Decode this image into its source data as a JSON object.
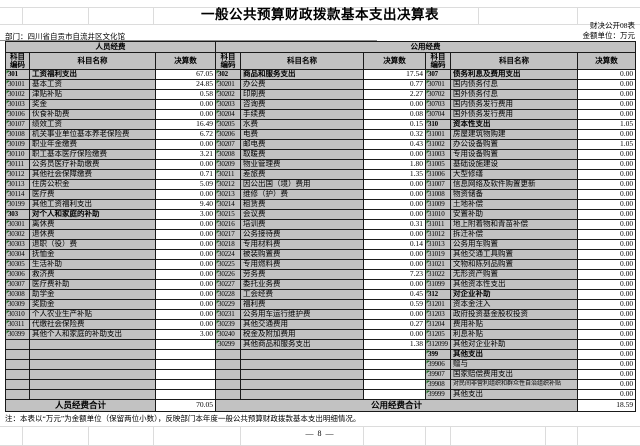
{
  "page": {
    "title": "一般公共预算财政拨款基本支出决算表",
    "table_code": "财决公开08表",
    "department_label": "部门：四川省自贡市自流井区文化馆",
    "unit_label": "金额单位：万元",
    "note": "注：本表以“万元”为金额单位（保留两位小数），反映部门本年度一般公共预算财政拨款基本支出明细情况。",
    "page_number": "— 8 —"
  },
  "table": {
    "group_headers": [
      "人员经费",
      "公用经费"
    ],
    "column_headers": [
      "科目编码",
      "科目名称",
      "决算数"
    ],
    "personnel": {
      "rows": [
        [
          "301",
          "工资福利支出",
          "67.05",
          1
        ],
        [
          "30101",
          "基本工资",
          "24.85"
        ],
        [
          "30102",
          "津贴补贴",
          "0.58"
        ],
        [
          "30103",
          "奖金",
          "0.00"
        ],
        [
          "30106",
          "伙食补助费",
          "0.00"
        ],
        [
          "30107",
          "绩效工资",
          "16.49"
        ],
        [
          "30108",
          "机关事业单位基本养老保险费",
          "6.72"
        ],
        [
          "30109",
          "职业年金缴费",
          "0.00"
        ],
        [
          "30110",
          "职工基本医疗保险缴费",
          "3.21"
        ],
        [
          "30111",
          "公务员医疗补助缴费",
          "0.00"
        ],
        [
          "30112",
          "其他社会保障缴费",
          "0.71"
        ],
        [
          "30113",
          "住房公积金",
          "5.09"
        ],
        [
          "30114",
          "医疗费",
          "0.00"
        ],
        [
          "30199",
          "其他工资福利支出",
          "9.40"
        ],
        [
          "303",
          "对个人和家庭的补助",
          "3.00",
          1
        ],
        [
          "30301",
          "离休费",
          "0.00"
        ],
        [
          "30302",
          "退休费",
          "0.00"
        ],
        [
          "30303",
          "退职（役）费",
          "0.00"
        ],
        [
          "30304",
          "抚恤金",
          "0.00"
        ],
        [
          "30305",
          "生活补助",
          "0.00"
        ],
        [
          "30306",
          "救济费",
          "0.00"
        ],
        [
          "30307",
          "医疗费补助",
          "0.00"
        ],
        [
          "30308",
          "助学金",
          "0.00"
        ],
        [
          "30309",
          "奖励金",
          "0.00"
        ],
        [
          "30310",
          "个人农业生产补贴",
          "0.00"
        ],
        [
          "30311",
          "代缴社会保险费",
          "0.00"
        ],
        [
          "30399",
          "其他个人和家庭的补助支出",
          "3.00"
        ]
      ],
      "total_label": "人员经费合计",
      "total": "70.05"
    },
    "public_a": {
      "rows": [
        [
          "302",
          "商品和服务支出",
          "17.54",
          1
        ],
        [
          "30201",
          "办公费",
          "0.77"
        ],
        [
          "30202",
          "印刷费",
          "2.27"
        ],
        [
          "30203",
          "咨询费",
          "0.00"
        ],
        [
          "30204",
          "手续费",
          "0.08"
        ],
        [
          "30205",
          "水费",
          "0.15"
        ],
        [
          "30206",
          "电费",
          "0.32"
        ],
        [
          "30207",
          "邮电费",
          "0.43"
        ],
        [
          "30208",
          "取暖费",
          "0.00"
        ],
        [
          "30209",
          "物业管理费",
          "1.80"
        ],
        [
          "30211",
          "差旅费",
          "1.35"
        ],
        [
          "30212",
          "因公出国（境）费用",
          "0.00"
        ],
        [
          "30213",
          "维修（护）费",
          "0.00"
        ],
        [
          "30214",
          "租赁费",
          "0.00"
        ],
        [
          "30215",
          "会议费",
          "0.00"
        ],
        [
          "30216",
          "培训费",
          "0.31"
        ],
        [
          "30217",
          "公务接待费",
          "0.00"
        ],
        [
          "30218",
          "专用材料费",
          "0.14"
        ],
        [
          "30224",
          "被装购置费",
          "0.00"
        ],
        [
          "30225",
          "专用燃料费",
          "0.00"
        ],
        [
          "30226",
          "劳务费",
          "7.23"
        ],
        [
          "30227",
          "委托业务费",
          "0.00"
        ],
        [
          "30228",
          "工会经费",
          "0.45"
        ],
        [
          "30229",
          "福利费",
          "0.59"
        ],
        [
          "30231",
          "公务用车运行维护费",
          "0.00"
        ],
        [
          "30239",
          "其他交通费用",
          "0.27"
        ],
        [
          "30240",
          "税金及附加费用",
          "0.00"
        ],
        [
          "30299",
          "其他商品和服务支出",
          "1.38"
        ]
      ]
    },
    "public_b": {
      "rows": [
        [
          "307",
          "债务利息及费用支出",
          "0.00",
          1
        ],
        [
          "30701",
          "国内债务付息",
          "0.00"
        ],
        [
          "30702",
          "国外债务付息",
          "0.00"
        ],
        [
          "30703",
          "国内债务发行费用",
          "0.00"
        ],
        [
          "30704",
          "国外债务发行费用",
          "0.00"
        ],
        [
          "310",
          "资本性支出",
          "1.05",
          1
        ],
        [
          "31001",
          "房屋建筑物购建",
          "0.00"
        ],
        [
          "31002",
          "办公设备购置",
          "1.05"
        ],
        [
          "31003",
          "专用设备购置",
          "0.00"
        ],
        [
          "31005",
          "基础设施建设",
          "0.00"
        ],
        [
          "31006",
          "大型修缮",
          "0.00"
        ],
        [
          "31007",
          "信息网络及软件购置更新",
          "0.00"
        ],
        [
          "31008",
          "物资储备",
          "0.00"
        ],
        [
          "31009",
          "土地补偿",
          "0.00"
        ],
        [
          "31010",
          "安置补助",
          "0.00"
        ],
        [
          "31011",
          "地上附着物和青苗补偿",
          "0.00"
        ],
        [
          "31012",
          "拆迁补偿",
          "0.00"
        ],
        [
          "31013",
          "公务用车购置",
          "0.00"
        ],
        [
          "31019",
          "其他交通工具购置",
          "0.00"
        ],
        [
          "31021",
          "文物和陈列品购置",
          "0.00"
        ],
        [
          "31022",
          "无形资产购置",
          "0.00"
        ],
        [
          "31099",
          "其他资本性支出",
          "0.00"
        ],
        [
          "312",
          "对企业补助",
          "0.00",
          1
        ],
        [
          "31201",
          "资本金注入",
          "0.00"
        ],
        [
          "31203",
          "政府投资基金股权投资",
          "0.00"
        ],
        [
          "31204",
          "费用补贴",
          "0.00"
        ],
        [
          "31205",
          "利息补贴",
          "0.00"
        ],
        [
          "312099",
          "其他对企业补助",
          "0.00"
        ],
        [
          "399",
          "其他支出",
          "0.00",
          1
        ],
        [
          "39906",
          "赠与",
          "0.00"
        ],
        [
          "39907",
          "国家赔偿费用支出",
          "0.00"
        ],
        [
          "39908",
          "对民间非营利组织和群众性自治组织补贴",
          "0.00"
        ],
        [
          "39999",
          "其他支出",
          "0.00"
        ]
      ],
      "total_label": "公用经费合计",
      "total": "18.59"
    }
  }
}
